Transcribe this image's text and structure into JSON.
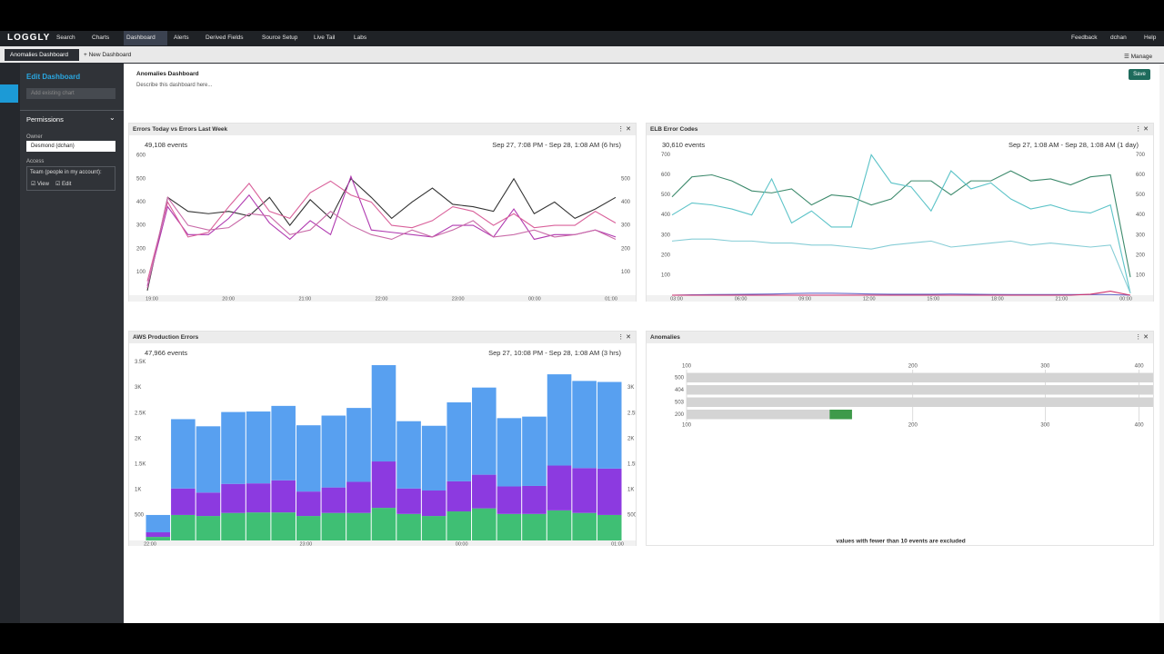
{
  "nav": {
    "logo": "LOGGLY",
    "items": [
      "Search",
      "Charts",
      "Dashboard",
      "Alerts",
      "Derived Fields",
      "Source Setup",
      "Live Tail",
      "Labs"
    ],
    "right": [
      "Feedback",
      "dchan",
      "Help"
    ]
  },
  "tabs": [
    "Anomalies Dashboard",
    "New Dashboard"
  ],
  "manage": "Manage",
  "sidebar": {
    "title": "Edit Dashboard",
    "add_chart": "Add existing chart",
    "permissions": "Permissions",
    "owner_label": "Owner",
    "owner": "Desmond (dchan)",
    "access_label": "Access",
    "team": "Team (people in my account):",
    "view": "View",
    "edit": "Edit"
  },
  "dashboard": {
    "title": "Anomalies Dashboard",
    "description": "Describe this dashboard here...",
    "save": "Save"
  },
  "widgets": [
    {
      "title": "Errors Today vs Errors Last Week",
      "events": "49,108 events",
      "range": "Sep 27, 7:08 PM - Sep 28, 1:08 AM (6 hrs)",
      "chart_data": {
        "type": "line",
        "x_labels": [
          "19:00",
          "20:00",
          "21:00",
          "22:00",
          "23:00",
          "00:00",
          "01:00"
        ],
        "ylim": [
          0,
          620
        ],
        "yticks": [
          100,
          200,
          300,
          400,
          500,
          600
        ],
        "y2lim": [
          0,
          620
        ],
        "y2ticks": [
          100,
          200,
          300,
          400,
          500
        ],
        "series": [
          {
            "color": "#333333",
            "values": [
              20,
              420,
              360,
              350,
              360,
              340,
              420,
              300,
              410,
              330,
              500,
              420,
              330,
              400,
              460,
              390,
              380,
              360,
              500,
              350,
              400,
              330,
              370,
              420
            ]
          },
          {
            "color": "#b03ab0",
            "values": [
              40,
              380,
              260,
              260,
              330,
              430,
              310,
              240,
              320,
              260,
              510,
              280,
              270,
              260,
              250,
              300,
              300,
              250,
              370,
              240,
              260,
              260,
              280,
              250
            ]
          },
          {
            "color": "#d9609a",
            "values": [
              60,
              400,
              250,
              270,
              380,
              480,
              360,
              330,
              440,
              490,
              430,
              400,
              300,
              290,
              320,
              380,
              360,
              300,
              350,
              290,
              300,
              300,
              360,
              310
            ]
          },
          {
            "color": "#c96aa8",
            "values": [
              30,
              420,
              300,
              280,
              290,
              350,
              340,
              260,
              280,
              360,
              300,
              260,
              240,
              280,
              250,
              280,
              320,
              250,
              260,
              280,
              250,
              260,
              280,
              240
            ]
          }
        ]
      }
    },
    {
      "title": "ELB Error Codes",
      "events": "30,610 events",
      "range": "Sep 27, 1:08 AM - Sep 28, 1:08 AM (1 day)",
      "chart_data": {
        "type": "line",
        "x_labels": [
          "03:00",
          "06:00",
          "09:00",
          "12:00",
          "15:00",
          "18:00",
          "21:00",
          "00:00"
        ],
        "ylim": [
          0,
          720
        ],
        "yticks": [
          100,
          200,
          300,
          400,
          500,
          600,
          700
        ],
        "y2lim": [
          0,
          720
        ],
        "y2ticks": [
          100,
          200,
          300,
          400,
          500,
          600,
          700
        ],
        "series": [
          {
            "color": "#3d8a6c",
            "values": [
              490,
              590,
              600,
              570,
              520,
              510,
              530,
              450,
              500,
              490,
              450,
              480,
              570,
              570,
              500,
              570,
              570,
              620,
              570,
              580,
              550,
              590,
              600,
              90
            ]
          },
          {
            "color": "#5cc3c8",
            "values": [
              400,
              460,
              450,
              430,
              400,
              580,
              360,
              420,
              340,
              340,
              700,
              560,
              540,
              420,
              620,
              530,
              560,
              480,
              430,
              450,
              420,
              410,
              450,
              10
            ]
          },
          {
            "color": "#86cdd6",
            "values": [
              270,
              280,
              280,
              270,
              270,
              260,
              260,
              250,
              250,
              240,
              230,
              250,
              260,
              270,
              240,
              250,
              260,
              270,
              250,
              260,
              250,
              240,
              250,
              10
            ]
          },
          {
            "color": "#6a6ac8",
            "values": [
              0,
              2,
              3,
              4,
              5,
              6,
              8,
              10,
              10,
              8,
              6,
              5,
              5,
              5,
              6,
              5,
              4,
              3,
              3,
              3,
              3,
              3,
              3,
              0
            ]
          },
          {
            "color": "#d0306a",
            "values": [
              0,
              0,
              0,
              0,
              0,
              0,
              0,
              0,
              0,
              0,
              0,
              0,
              0,
              0,
              0,
              0,
              0,
              0,
              0,
              0,
              0,
              5,
              20,
              0
            ]
          }
        ]
      }
    },
    {
      "title": "AWS Production Errors",
      "events": "47,966 events",
      "range": "Sep 27, 10:08 PM - Sep 28, 1:08 AM (3 hrs)",
      "chart_data": {
        "type": "bar",
        "stacked": true,
        "x_labels": [
          "22:00",
          "23:00",
          "00:00",
          "01:00"
        ],
        "ylim": [
          0,
          3600
        ],
        "yticks": [
          500,
          {
            "value": 1000,
            "label": "1K"
          },
          {
            "value": 1500,
            "label": "1.5K"
          },
          {
            "value": 2000,
            "label": "2K"
          },
          {
            "value": 2500,
            "label": "2.5K"
          },
          {
            "value": 3000,
            "label": "3K"
          },
          {
            "value": 3500,
            "label": "3.5K"
          }
        ],
        "y2lim": [
          0,
          3600
        ],
        "y2ticks": [
          500,
          {
            "value": 1000,
            "label": "1K"
          },
          {
            "value": 1500,
            "label": "1.5K"
          },
          {
            "value": 2000,
            "label": "2K"
          },
          {
            "value": 2500,
            "label": "2.5K"
          },
          {
            "value": 3000,
            "label": "3K"
          }
        ],
        "series": [
          {
            "color": "#3fbf74",
            "values": [
              70,
              500,
              480,
              540,
              550,
              550,
              480,
              540,
              540,
              640,
              520,
              480,
              570,
              630,
              520,
              520,
              590,
              540,
              500
            ]
          },
          {
            "color": "#8c3ae0",
            "values": [
              90,
              520,
              460,
              570,
              570,
              630,
              480,
              500,
              610,
              910,
              500,
              500,
              590,
              660,
              540,
              550,
              880,
              880,
              910
            ]
          },
          {
            "color": "#58a0f0",
            "values": [
              340,
              1360,
              1300,
              1410,
              1410,
              1460,
              1300,
              1410,
              1450,
              1890,
              1320,
              1270,
              1550,
              1710,
              1340,
              1360,
              1790,
              1710,
              1700
            ]
          }
        ]
      }
    },
    {
      "title": "Anomalies",
      "footer": "values with fewer than 10 events are excluded",
      "chart_data": {
        "type": "hbar",
        "log": true,
        "categories": [
          "500",
          "404",
          "503",
          "200"
        ],
        "xlim": [
          100,
          421
        ],
        "xticks": [
          100,
          200,
          300,
          400
        ],
        "series": [
          {
            "color": "#3e9a4a",
            "values": [
              null,
              null,
              null,
              166
            ]
          },
          {
            "color": "#d4d4d4",
            "values": [
              421,
              421,
              421,
              155
            ]
          }
        ]
      }
    }
  ]
}
